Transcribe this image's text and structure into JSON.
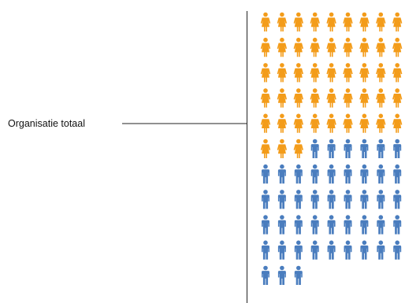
{
  "chart_data": {
    "type": "pictogram",
    "group_label": "Organisatie totaal",
    "series": [
      {
        "icon": "female-person-icon",
        "count": 48,
        "color": "#F39C1A"
      },
      {
        "icon": "male-person-icon",
        "count": 45,
        "color": "#4A7DBE"
      }
    ],
    "icons_per_row": 9,
    "rows_visible": 11
  }
}
